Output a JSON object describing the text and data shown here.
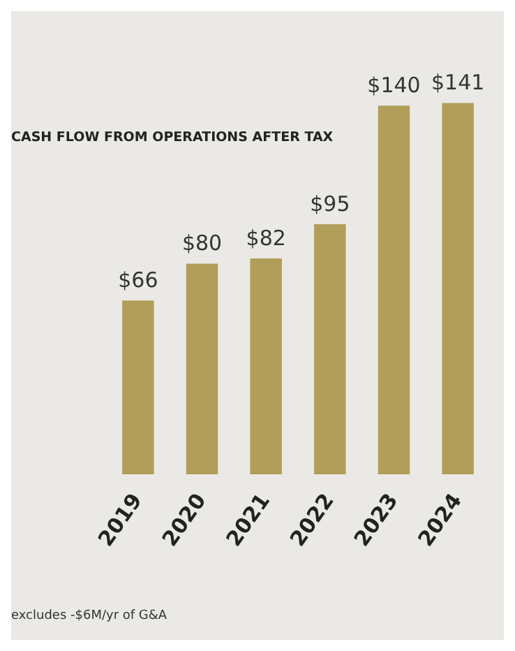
{
  "chart_data": {
    "type": "bar",
    "title": "CASH FLOW FROM OPERATIONS AFTER TAX",
    "categories": [
      "2019",
      "2020",
      "2021",
      "2022",
      "2023",
      "2024"
    ],
    "values": [
      66,
      80,
      82,
      95,
      140,
      141
    ],
    "value_labels": [
      "$66",
      "$80",
      "$82",
      "$95",
      "$140",
      "$141"
    ],
    "color": "#b09e5a",
    "annotations": [
      "excludes -$6M/yr of G&A"
    ]
  }
}
